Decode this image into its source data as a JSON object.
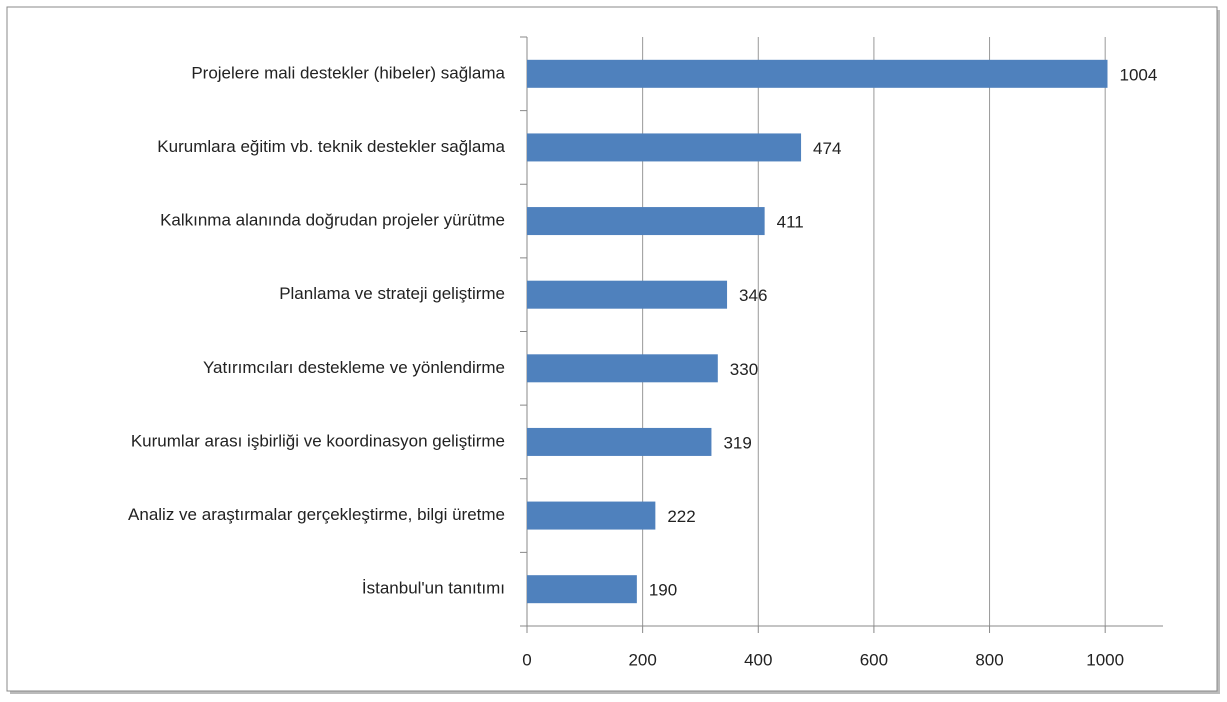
{
  "chart_data": {
    "type": "bar",
    "orientation": "horizontal",
    "categories": [
      "Projelere mali destekler (hibeler) sağlama",
      "Kurumlara eğitim vb. teknik destekler sağlama",
      "Kalkınma alanında doğrudan projeler yürütme",
      "Planlama ve strateji geliştirme",
      "Yatırımcıları destekleme ve yönlendirme",
      "Kurumlar arası işbirliği ve koordinasyon geliştirme",
      "Analiz ve araştırmalar gerçekleştirme, bilgi üretme",
      "İstanbul'un tanıtımı"
    ],
    "values": [
      1004,
      474,
      411,
      346,
      330,
      319,
      222,
      190
    ],
    "color": "#4f81bd",
    "xlim": [
      0,
      1100
    ],
    "xticks": [
      0,
      200,
      400,
      600,
      800,
      1000
    ],
    "grid": true
  }
}
